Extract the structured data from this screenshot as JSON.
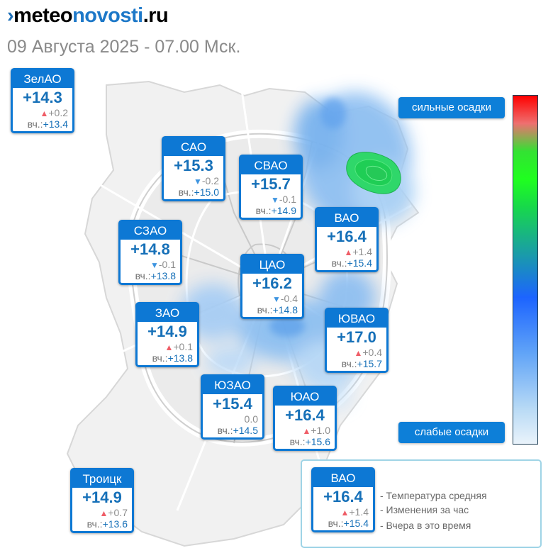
{
  "brand": {
    "logo_mark": "›",
    "logo_part1": "meteo",
    "logo_part2": "novosti",
    "logo_part3": ".ru"
  },
  "subtitle": "09 Августа 2025 - 07.00 Мск.",
  "yesterday_label": "вч.:",
  "districts": [
    {
      "id": "zelao",
      "name": "ЗелАО",
      "temp": "+14.3",
      "trend": "up",
      "change": "+0.2",
      "yesterday": "+13.4"
    },
    {
      "id": "sao",
      "name": "САО",
      "temp": "+15.3",
      "trend": "down",
      "change": "-0.2",
      "yesterday": "+15.0"
    },
    {
      "id": "svao",
      "name": "СВАО",
      "temp": "+15.7",
      "trend": "down",
      "change": "-0.1",
      "yesterday": "+14.9"
    },
    {
      "id": "vao",
      "name": "ВАО",
      "temp": "+16.4",
      "trend": "up",
      "change": "+1.4",
      "yesterday": "+15.4"
    },
    {
      "id": "szao",
      "name": "СЗАО",
      "temp": "+14.8",
      "trend": "down",
      "change": "-0.1",
      "yesterday": "+13.8"
    },
    {
      "id": "cao",
      "name": "ЦАО",
      "temp": "+16.2",
      "trend": "down",
      "change": "-0.4",
      "yesterday": "+14.8"
    },
    {
      "id": "zao",
      "name": "ЗАО",
      "temp": "+14.9",
      "trend": "up",
      "change": "+0.1",
      "yesterday": "+13.8"
    },
    {
      "id": "yuvao",
      "name": "ЮВАО",
      "temp": "+17.0",
      "trend": "up",
      "change": "+0.4",
      "yesterday": "+15.7"
    },
    {
      "id": "yuzao",
      "name": "ЮЗАО",
      "temp": "+15.4",
      "trend": "none",
      "change": "0.0",
      "yesterday": "+14.5"
    },
    {
      "id": "yuao",
      "name": "ЮАО",
      "temp": "+16.4",
      "trend": "up",
      "change": "+1.0",
      "yesterday": "+15.6"
    },
    {
      "id": "troitsk",
      "name": "Троицк",
      "temp": "+14.9",
      "trend": "up",
      "change": "+0.7",
      "yesterday": "+13.6"
    }
  ],
  "precip_scale": {
    "strong_label": "сильные осадки",
    "weak_label": "слабые осадки",
    "colors": [
      "#ff0000",
      "#33e233",
      "#1c64ff",
      "#e9f3fb"
    ]
  },
  "legend": {
    "sample": {
      "name": "ВАО",
      "temp": "+16.4",
      "trend": "up",
      "change": "+1.4",
      "yesterday": "+15.4"
    },
    "line1": "- Температура средняя",
    "line2": "- Изменения за час",
    "line3": "- Вчера в это время"
  },
  "colors": {
    "accent_blue": "#0d78d4",
    "temp_blue": "#1670b8",
    "trend_up": "#ef5d67",
    "trend_down": "#3f95e0"
  }
}
